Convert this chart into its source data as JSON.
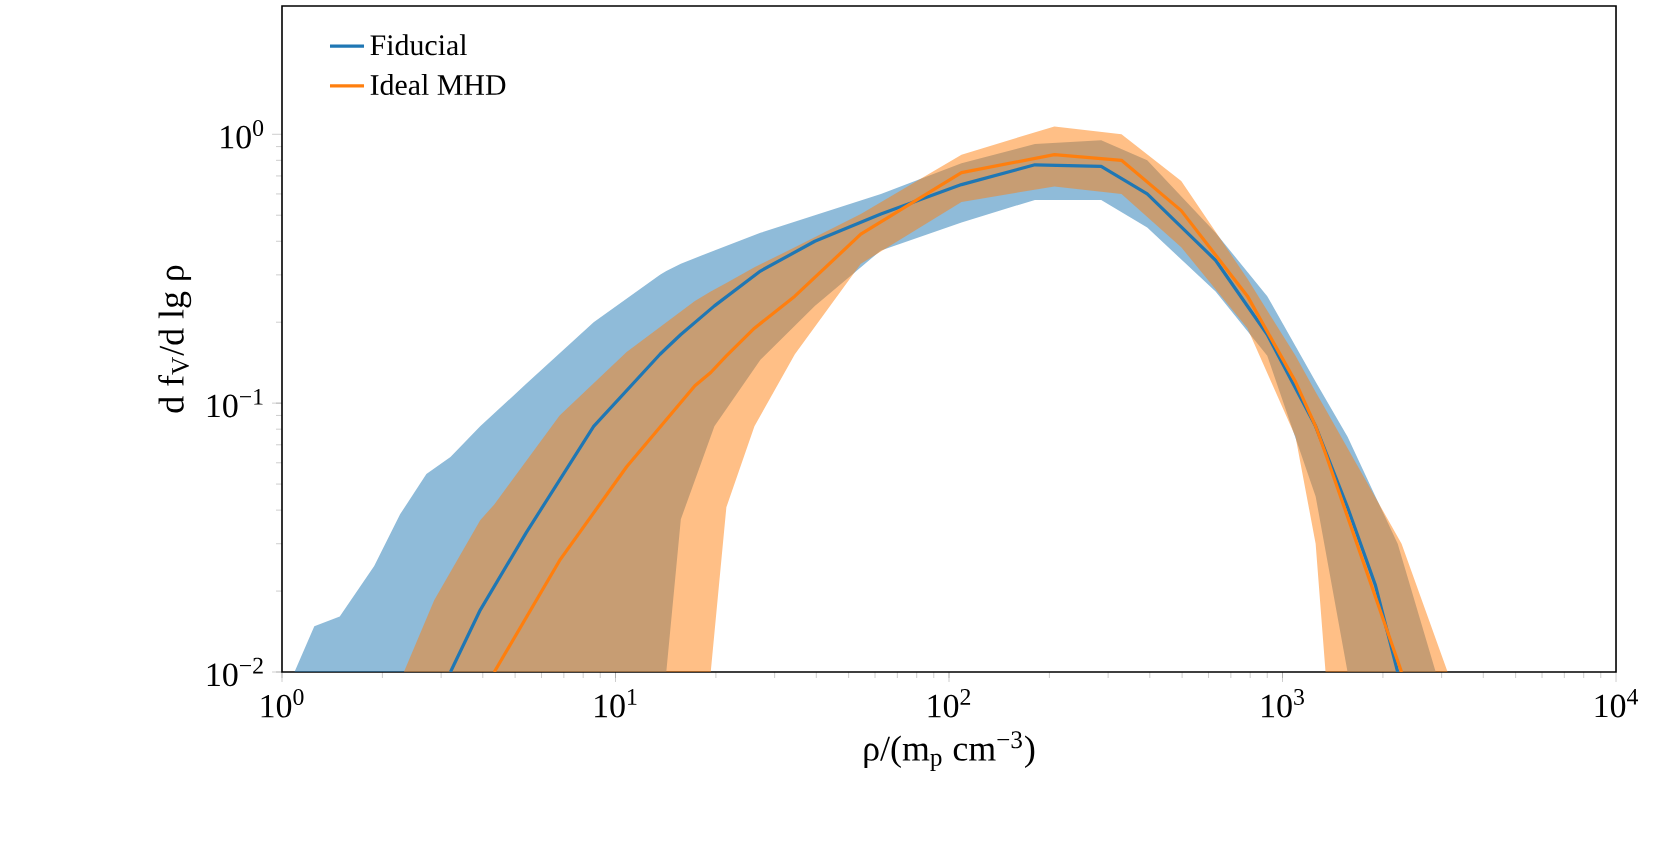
{
  "chart_data": {
    "type": "line",
    "xlabel": "ρ/(m$_{p}$ cm$^{−3}$)",
    "ylabel": "d f$_{V}$/d lg ρ",
    "log": "xy",
    "legend": "top left",
    "xlim": [
      1,
      10000
    ],
    "ylim": [
      0.01,
      3
    ],
    "xticks": [
      {
        "value": 1,
        "label": "10$^{0}$"
      },
      {
        "value": 10,
        "label": "10$^{1}$"
      },
      {
        "value": 100,
        "label": "10$^{2}$"
      },
      {
        "value": 1000,
        "label": "10$^{3}$"
      },
      {
        "value": 10000,
        "label": "10$^{4}$"
      }
    ],
    "yticks": [
      {
        "value": 0.01,
        "label": "10$^{−2}$"
      },
      {
        "value": 0.1,
        "label": "10$^{−1}$"
      },
      {
        "value": 1,
        "label": "10$^{0}$"
      }
    ],
    "series": [
      {
        "name": "Fiducial",
        "color": "#1f77b4",
        "x": [
          1.09,
          1.25,
          1.49,
          1.89,
          2.26,
          2.71,
          3.2,
          3.93,
          5.4,
          8.6,
          13.6,
          14.2,
          15.7,
          19.8,
          27.2,
          39.6,
          62.5,
          109,
          181,
          286,
          393,
          630,
          900,
          1257,
          1567,
          1900,
          2215,
          2880
        ],
        "values": [
          null,
          null,
          null,
          null,
          null,
          null,
          0.01,
          0.017,
          0.033,
          0.082,
          0.152,
          0.16,
          0.18,
          0.23,
          0.31,
          0.4,
          0.505,
          0.65,
          0.77,
          0.76,
          0.6,
          0.34,
          0.18,
          0.082,
          0.041,
          0.021,
          0.01,
          null
        ],
        "lower": [
          0.01,
          0.01,
          0.01,
          0.01,
          0.01,
          0.01,
          0.01,
          0.01,
          0.01,
          0.01,
          0.01,
          0.01,
          0.037,
          0.082,
          0.145,
          0.23,
          0.37,
          0.47,
          0.57,
          0.57,
          0.45,
          0.26,
          0.15,
          0.045,
          0.01,
          0.01,
          0.01,
          0.01
        ],
        "upper": [
          0.01,
          0.0148,
          0.0161,
          0.0248,
          0.0386,
          0.0545,
          0.063,
          0.082,
          0.118,
          0.2,
          0.3,
          0.31,
          0.33,
          0.37,
          0.43,
          0.5,
          0.6,
          0.78,
          0.92,
          0.95,
          0.8,
          0.43,
          0.25,
          0.12,
          0.075,
          0.045,
          0.03,
          0.01
        ]
      },
      {
        "name": "Ideal MHD",
        "color": "#ff7f0e",
        "x": [
          2.32,
          2.86,
          3.93,
          4.33,
          6.8,
          10.8,
          17.3,
          19.3,
          21.5,
          26.1,
          34.5,
          54.4,
          109,
          207,
          329,
          497,
          785,
          1094,
          1257,
          1346,
          2275,
          3127
        ],
        "values": [
          null,
          null,
          null,
          0.01,
          0.026,
          0.058,
          0.116,
          0.13,
          0.15,
          0.19,
          0.25,
          0.425,
          0.72,
          0.84,
          0.8,
          0.52,
          0.25,
          0.12,
          0.082,
          0.065,
          0.01,
          null
        ],
        "lower": [
          0.01,
          0.01,
          0.01,
          0.01,
          0.01,
          0.01,
          0.01,
          0.01,
          0.041,
          0.082,
          0.152,
          0.33,
          0.56,
          0.64,
          0.6,
          0.38,
          0.19,
          0.075,
          0.03,
          0.01,
          0.01,
          0.01
        ],
        "upper": [
          0.01,
          0.0185,
          0.0367,
          0.042,
          0.09,
          0.155,
          0.24,
          0.26,
          0.28,
          0.32,
          0.38,
          0.505,
          0.84,
          1.07,
          1.0,
          0.67,
          0.29,
          0.15,
          0.11,
          0.095,
          0.03,
          0.01
        ]
      }
    ]
  }
}
